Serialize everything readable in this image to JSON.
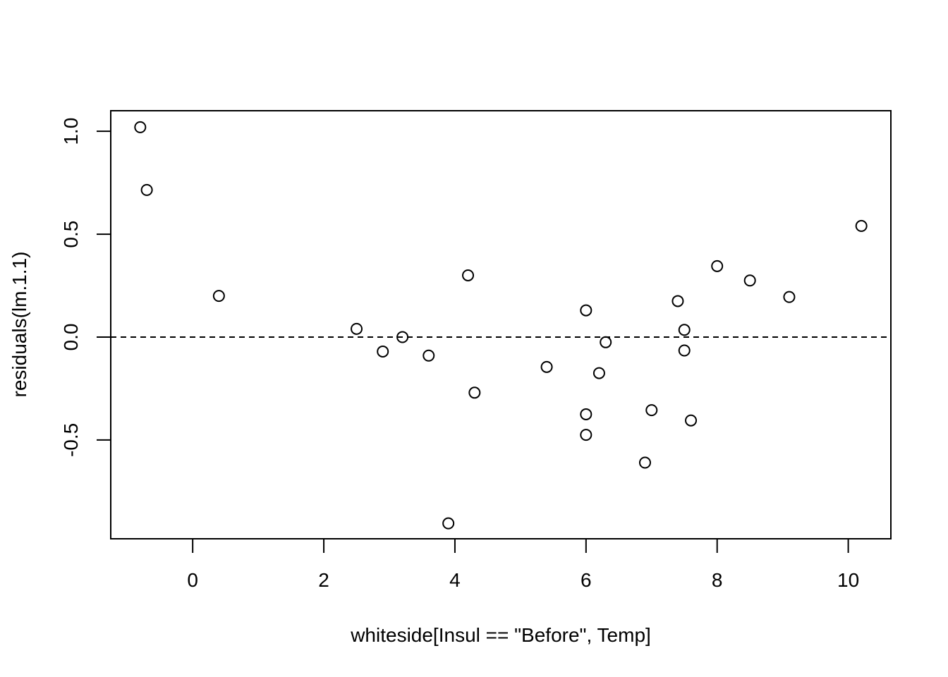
{
  "chart_data": {
    "type": "scatter",
    "title": "",
    "xlabel": "whiteside[Insul == \"Before\", Temp]",
    "ylabel": "residuals(lm.1.1)",
    "xlim": [
      -1.25,
      10.65
    ],
    "ylim": [
      -0.98,
      1.1
    ],
    "xticks": [
      0,
      2,
      4,
      6,
      8,
      10
    ],
    "xtick_labels": [
      "0",
      "2",
      "4",
      "6",
      "8",
      "10"
    ],
    "yticks": [
      -0.5,
      0.0,
      0.5,
      1.0
    ],
    "ytick_labels": [
      "-0.5",
      "0.0",
      "0.5",
      "1.0"
    ],
    "grid": false,
    "reference_line": {
      "y": 0.0,
      "style": "dashed"
    },
    "points": [
      {
        "x": -0.8,
        "y": 1.02
      },
      {
        "x": -0.7,
        "y": 0.715
      },
      {
        "x": 0.4,
        "y": 0.2
      },
      {
        "x": 2.5,
        "y": 0.04
      },
      {
        "x": 2.9,
        "y": -0.07
      },
      {
        "x": 3.2,
        "y": 0.0
      },
      {
        "x": 3.6,
        "y": -0.09
      },
      {
        "x": 3.9,
        "y": -0.905
      },
      {
        "x": 4.2,
        "y": 0.3
      },
      {
        "x": 4.3,
        "y": -0.27
      },
      {
        "x": 5.4,
        "y": -0.145
      },
      {
        "x": 6.0,
        "y": 0.13
      },
      {
        "x": 6.0,
        "y": -0.375
      },
      {
        "x": 6.0,
        "y": -0.475
      },
      {
        "x": 6.2,
        "y": -0.175
      },
      {
        "x": 6.3,
        "y": -0.025
      },
      {
        "x": 6.9,
        "y": -0.61
      },
      {
        "x": 7.0,
        "y": -0.355
      },
      {
        "x": 7.4,
        "y": 0.175
      },
      {
        "x": 7.5,
        "y": 0.035
      },
      {
        "x": 7.5,
        "y": -0.065
      },
      {
        "x": 7.6,
        "y": -0.405
      },
      {
        "x": 8.0,
        "y": 0.345
      },
      {
        "x": 8.5,
        "y": 0.275
      },
      {
        "x": 9.1,
        "y": 0.195
      },
      {
        "x": 10.2,
        "y": 0.54
      }
    ]
  }
}
